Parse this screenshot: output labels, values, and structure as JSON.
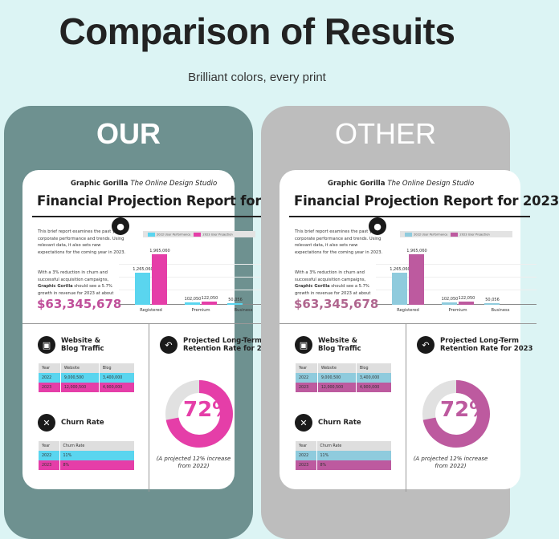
{
  "header": {
    "title": "Comparison of Resuits",
    "subtitle": "Brilliant colors, every print"
  },
  "panels": {
    "our": "OUR",
    "other": "OTHER"
  },
  "doc": {
    "brand": "Graphic Gorilla",
    "brand_tagline": "The Online Design Studio",
    "title": "Financial Projection Report for 2023",
    "para1": "This brief report examines the past year's corporate performance and trends. Using relevant data, it also sets new expectations for the coming year in 2023.",
    "para2_a": "With a 3% reduction in churn and successful acquisition campaigns, ",
    "para2_b": "Graphic Gorilla",
    "para2_c": " should see a 5.7% growth in revenue for 2023 at about",
    "amount": "$63,345,678",
    "chart_data": {
      "type": "bar",
      "categories": [
        "Registered",
        "Premium",
        "Business"
      ],
      "series": [
        {
          "name": "2022 User Performance",
          "values": [
            1265060,
            102050,
            50056
          ],
          "labels": [
            "1,265,060",
            "102,050",
            "50,056"
          ]
        },
        {
          "name": "2023 User Projection",
          "values": [
            1965060,
            122050,
            null
          ],
          "labels": [
            "1,965,060",
            "122,050",
            ""
          ]
        }
      ]
    },
    "traffic": {
      "title1": "Website &",
      "title2": "Blog Traffic",
      "headers": [
        "Year",
        "Website",
        "Blog"
      ],
      "rows": [
        [
          "2022",
          "9,000,500",
          "3,400,000"
        ],
        [
          "2023",
          "12,000,500",
          "4,900,000"
        ]
      ]
    },
    "churn": {
      "title": "Churn Rate",
      "headers": [
        "Year",
        "Churn Rate"
      ],
      "rows": [
        [
          "2022",
          "11%"
        ],
        [
          "2023",
          "8%"
        ]
      ]
    },
    "retention": {
      "title1": "Projected Long-Term",
      "title2": "Retention Rate for 2023",
      "value": 72,
      "label": "72%",
      "note": "(A projected 12% increase from 2022)"
    }
  },
  "colors": {
    "background": "#dcf4f4",
    "our_panel": "#6e9190",
    "other_panel": "#bdbdbd",
    "blue": "#5ad5ef",
    "pink": "#e53ea8"
  },
  "icons": [
    "user-icon",
    "monitor-icon",
    "close-circle-icon",
    "undo-arrow-icon"
  ]
}
